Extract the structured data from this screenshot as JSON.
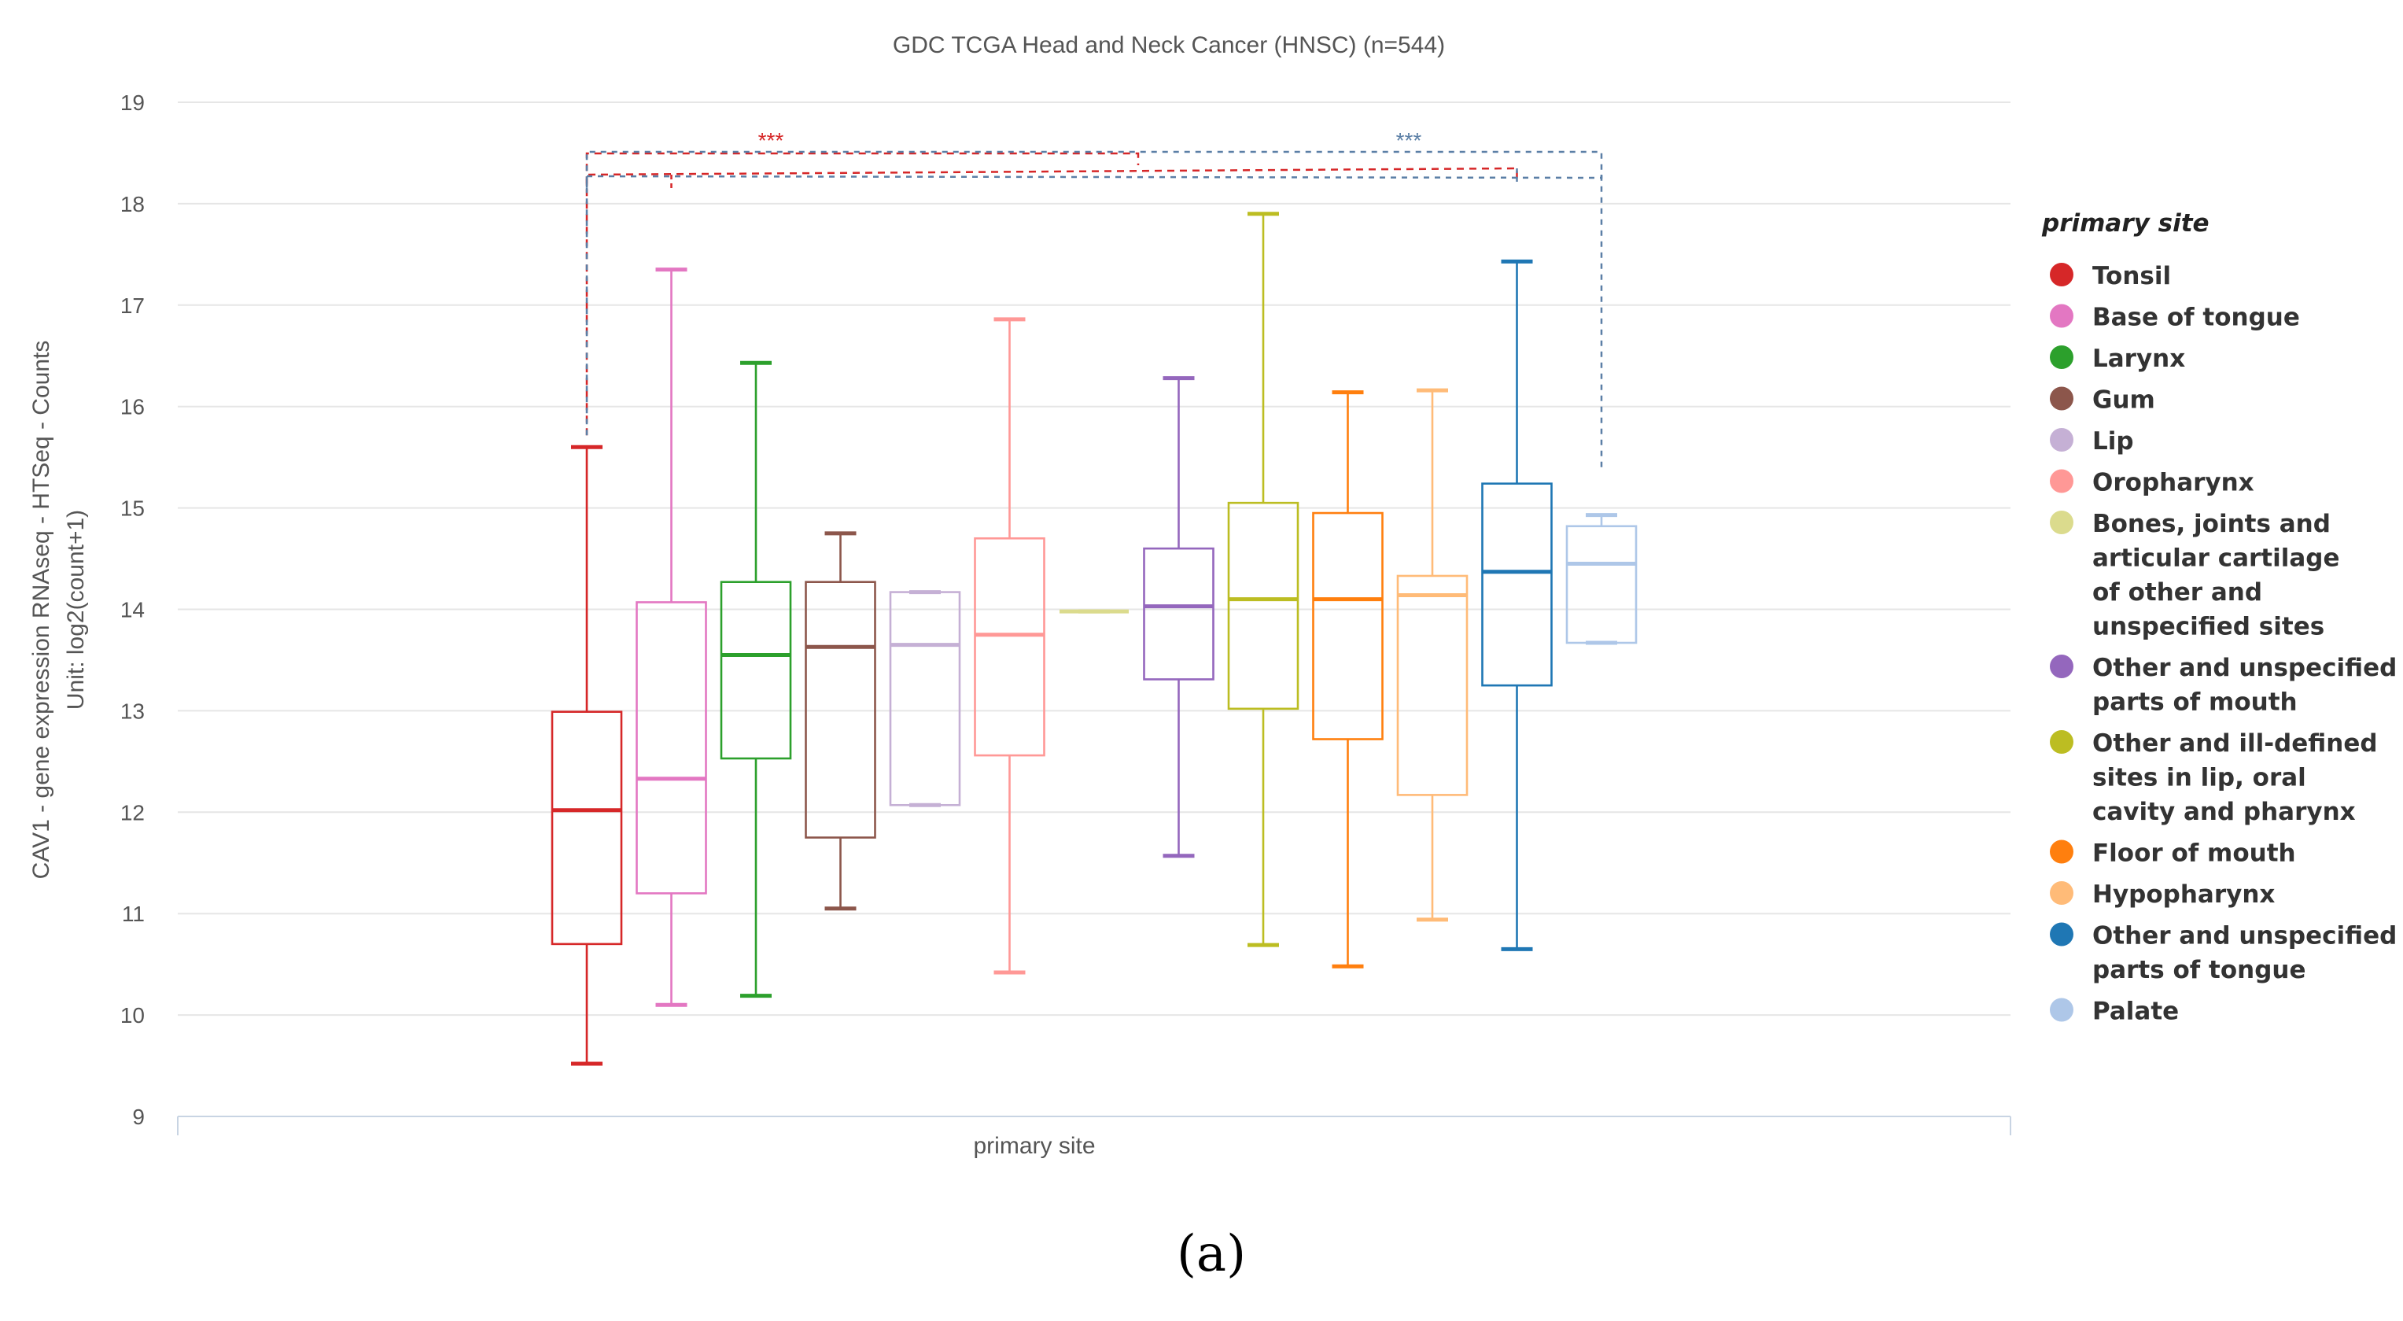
{
  "chart_data": {
    "type": "box",
    "title": "GDC TCGA Head and Neck Cancer (HNSC) (n=544)",
    "ylabel_line1": "CAV1 - gene expression RNAseq - HTSeq - Counts",
    "ylabel_line2": "Unit: log2(count+1)",
    "xlabel": "primary site",
    "ylim": [
      9,
      19
    ],
    "yticks": [
      9,
      10,
      11,
      12,
      13,
      14,
      15,
      16,
      17,
      18,
      19
    ],
    "grid": true,
    "legend_title": "primary site",
    "legend_position": "right",
    "caption": "(a)",
    "series": [
      {
        "name": "Tonsil",
        "color": "#d62728",
        "min": 9.52,
        "q1": 10.7,
        "median": 12.02,
        "q3": 12.99,
        "max": 15.6
      },
      {
        "name": "Base of tongue",
        "color": "#e377c2",
        "min": 10.1,
        "q1": 11.2,
        "median": 12.33,
        "q3": 14.07,
        "max": 17.35
      },
      {
        "name": "Larynx",
        "color": "#2ca02c",
        "min": 10.19,
        "q1": 12.53,
        "median": 13.55,
        "q3": 14.27,
        "max": 16.43
      },
      {
        "name": "Gum",
        "color": "#8c564b",
        "min": 11.05,
        "q1": 11.75,
        "median": 13.63,
        "q3": 14.27,
        "max": 14.75
      },
      {
        "name": "Lip",
        "color": "#c5b0d5",
        "min": 12.07,
        "q1": 12.07,
        "median": 13.65,
        "q3": 14.17,
        "max": 14.17
      },
      {
        "name": "Oropharynx",
        "color": "#ff9896",
        "min": 10.42,
        "q1": 12.56,
        "median": 13.75,
        "q3": 14.7,
        "max": 16.86
      },
      {
        "name": "Bones, joints and articular cartilage of other and unspecified sites",
        "color": "#dbdb8d",
        "min": 13.98,
        "q1": 13.98,
        "median": 13.98,
        "q3": 13.98,
        "max": 13.98
      },
      {
        "name": "Other and unspecified parts of mouth",
        "color": "#9467bd",
        "min": 11.57,
        "q1": 13.31,
        "median": 14.03,
        "q3": 14.6,
        "max": 16.28
      },
      {
        "name": "Other and ill-defined sites in lip, oral cavity and pharynx",
        "color": "#bcbd22",
        "min": 10.69,
        "q1": 13.02,
        "median": 14.1,
        "q3": 15.05,
        "max": 17.9
      },
      {
        "name": "Floor of mouth",
        "color": "#ff7f0e",
        "min": 10.48,
        "q1": 12.72,
        "median": 14.1,
        "q3": 14.95,
        "max": 16.14
      },
      {
        "name": "Hypopharynx",
        "color": "#ffbb78",
        "min": 10.94,
        "q1": 12.17,
        "median": 14.14,
        "q3": 14.33,
        "max": 16.16
      },
      {
        "name": "Other and unspecified parts of tongue",
        "color": "#1f77b4",
        "min": 10.65,
        "q1": 13.25,
        "median": 14.37,
        "q3": 15.24,
        "max": 17.43
      },
      {
        "name": "Palate",
        "color": "#aec7e8",
        "min": 13.67,
        "q1": 13.67,
        "median": 14.45,
        "q3": 14.82,
        "max": 14.93
      }
    ],
    "legend_lines": [
      [
        "Tonsil"
      ],
      [
        "Base of tongue"
      ],
      [
        "Larynx"
      ],
      [
        "Gum"
      ],
      [
        "Lip"
      ],
      [
        "Oropharynx"
      ],
      [
        "Bones, joints and",
        "articular cartilage",
        "of other and",
        "unspecified sites"
      ],
      [
        "Other and unspecified",
        "parts of mouth"
      ],
      [
        "Other and ill-defined",
        "sites in lip, oral",
        "cavity and pharynx"
      ],
      [
        "Floor of mouth"
      ],
      [
        "Hypopharynx"
      ],
      [
        "Other and unspecified",
        "parts of tongue"
      ],
      [
        "Palate"
      ]
    ],
    "annotations": [
      {
        "label": "***",
        "color": "#d62728",
        "from_series": 0,
        "to_series": 11
      },
      {
        "label": "***",
        "color": "#5b7fa6",
        "from_series": 0,
        "to_series": 12
      }
    ]
  }
}
